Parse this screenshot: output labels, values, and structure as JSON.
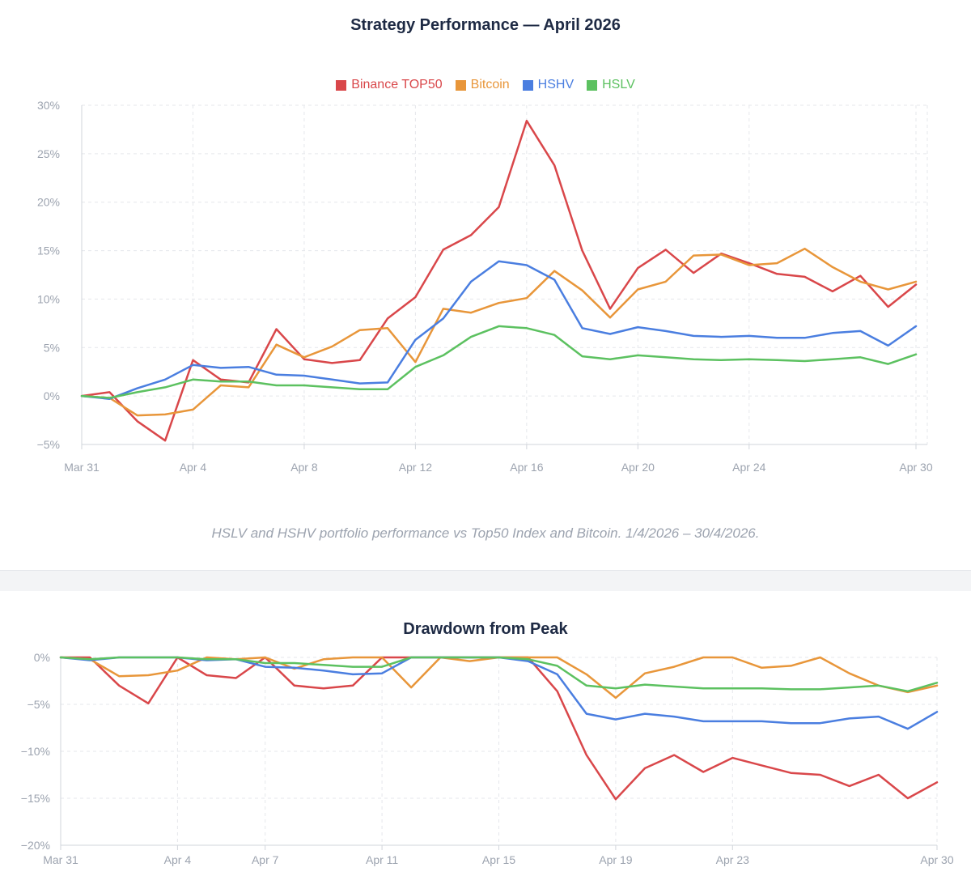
{
  "chart_data": [
    {
      "type": "line",
      "title": "Strategy Performance — April 2026",
      "caption": "HSLV and HSHV portfolio performance vs Top50 Index and Bitcoin. 1/4/2026 – 30/4/2026.",
      "legend_position": "top-center",
      "grid": true,
      "x": [
        "Mar 31",
        "Apr 1",
        "Apr 2",
        "Apr 3",
        "Apr 4",
        "Apr 5",
        "Apr 6",
        "Apr 7",
        "Apr 8",
        "Apr 9",
        "Apr 10",
        "Apr 11",
        "Apr 12",
        "Apr 13",
        "Apr 14",
        "Apr 15",
        "Apr 16",
        "Apr 17",
        "Apr 18",
        "Apr 19",
        "Apr 20",
        "Apr 21",
        "Apr 22",
        "Apr 23",
        "Apr 24",
        "Apr 25",
        "Apr 26",
        "Apr 27",
        "Apr 28",
        "Apr 29",
        "Apr 30"
      ],
      "xticks": [
        "Mar 31",
        "Apr 4",
        "Apr 8",
        "Apr 12",
        "Apr 16",
        "Apr 20",
        "Apr 24",
        "Apr 30"
      ],
      "yticks": [
        "30%",
        "25%",
        "20%",
        "15%",
        "10%",
        "5%",
        "0%",
        "−5%"
      ],
      "ylim": [
        -5,
        30
      ],
      "series": [
        {
          "name": "Binance TOP50",
          "color": "#d9474a",
          "values": [
            0,
            0.4,
            -2.6,
            -4.6,
            3.7,
            1.7,
            1.4,
            6.9,
            3.8,
            3.4,
            3.7,
            8.0,
            10.2,
            15.1,
            16.6,
            19.5,
            28.4,
            23.8,
            15.0,
            9.0,
            13.2,
            15.1,
            12.7,
            14.7,
            13.7,
            12.6,
            12.3,
            10.8,
            12.4,
            9.2,
            11.5
          ]
        },
        {
          "name": "Bitcoin",
          "color": "#e8963a",
          "values": [
            0,
            -0.2,
            -2.0,
            -1.9,
            -1.4,
            1.1,
            0.9,
            5.3,
            4.0,
            5.1,
            6.8,
            7.0,
            3.5,
            9.0,
            8.6,
            9.6,
            10.1,
            12.9,
            10.9,
            8.1,
            11.0,
            11.8,
            14.5,
            14.6,
            13.5,
            13.7,
            15.2,
            13.3,
            11.8,
            11.0,
            11.8
          ]
        },
        {
          "name": "HSHV",
          "color": "#4a7ee0",
          "values": [
            0,
            -0.3,
            0.8,
            1.7,
            3.2,
            2.9,
            3.0,
            2.2,
            2.1,
            1.7,
            1.3,
            1.4,
            5.8,
            8.0,
            11.8,
            13.9,
            13.5,
            12.0,
            7.0,
            6.4,
            7.1,
            6.7,
            6.2,
            6.1,
            6.2,
            6.0,
            6.0,
            6.5,
            6.7,
            5.2,
            7.2
          ]
        },
        {
          "name": "HSLV",
          "color": "#5cc160",
          "values": [
            0,
            -0.2,
            0.4,
            0.9,
            1.7,
            1.5,
            1.5,
            1.1,
            1.1,
            0.9,
            0.7,
            0.7,
            3.0,
            4.2,
            6.1,
            7.2,
            7.0,
            6.3,
            4.1,
            3.8,
            4.2,
            4.0,
            3.8,
            3.7,
            3.8,
            3.7,
            3.6,
            3.8,
            4.0,
            3.3,
            4.3
          ]
        }
      ]
    },
    {
      "type": "line",
      "title": "Drawdown from Peak",
      "grid": true,
      "x": [
        "Mar 31",
        "Apr 1",
        "Apr 2",
        "Apr 3",
        "Apr 4",
        "Apr 5",
        "Apr 6",
        "Apr 7",
        "Apr 8",
        "Apr 9",
        "Apr 10",
        "Apr 11",
        "Apr 12",
        "Apr 13",
        "Apr 14",
        "Apr 15",
        "Apr 16",
        "Apr 17",
        "Apr 18",
        "Apr 19",
        "Apr 20",
        "Apr 21",
        "Apr 22",
        "Apr 23",
        "Apr 24",
        "Apr 25",
        "Apr 26",
        "Apr 27",
        "Apr 28",
        "Apr 29",
        "Apr 30"
      ],
      "xticks": [
        "Mar 31",
        "Apr 4",
        "Apr 7",
        "Apr 11",
        "Apr 15",
        "Apr 19",
        "Apr 23",
        "Apr 30"
      ],
      "yticks": [
        "0%",
        "−5%",
        "−10%",
        "−15%",
        "−20%"
      ],
      "ylim": [
        -20,
        0
      ],
      "series": [
        {
          "name": "Binance TOP50",
          "color": "#d9474a",
          "values": [
            0,
            0,
            -3.0,
            -4.9,
            0,
            -1.9,
            -2.2,
            0,
            -3.0,
            -3.3,
            -3.0,
            0,
            0,
            0,
            0,
            0,
            0,
            -3.6,
            -10.4,
            -15.1,
            -11.8,
            -10.4,
            -12.2,
            -10.7,
            -11.5,
            -12.3,
            -12.5,
            -13.7,
            -12.5,
            -15.0,
            -13.3
          ]
        },
        {
          "name": "Bitcoin",
          "color": "#e8963a",
          "values": [
            0,
            -0.2,
            -2.0,
            -1.9,
            -1.4,
            0,
            -0.2,
            0,
            -1.2,
            -0.2,
            0,
            0,
            -3.2,
            0,
            -0.4,
            0,
            0,
            0,
            -1.8,
            -4.3,
            -1.7,
            -1.0,
            0,
            0,
            -1.1,
            -0.9,
            0,
            -1.7,
            -3.0,
            -3.7,
            -3.0
          ]
        },
        {
          "name": "HSHV",
          "color": "#4a7ee0",
          "values": [
            0,
            -0.3,
            0,
            0,
            0,
            -0.3,
            -0.2,
            -1.0,
            -1.1,
            -1.4,
            -1.8,
            -1.7,
            0,
            0,
            0,
            0,
            -0.4,
            -1.8,
            -6.0,
            -6.6,
            -6.0,
            -6.3,
            -6.8,
            -6.8,
            -6.8,
            -7.0,
            -7.0,
            -6.5,
            -6.3,
            -7.6,
            -5.8
          ]
        },
        {
          "name": "HSLV",
          "color": "#5cc160",
          "values": [
            0,
            -0.2,
            0,
            0,
            0,
            -0.2,
            -0.2,
            -0.6,
            -0.6,
            -0.8,
            -1.0,
            -1.0,
            0,
            0,
            0,
            0,
            -0.2,
            -0.9,
            -3.0,
            -3.3,
            -2.9,
            -3.1,
            -3.3,
            -3.3,
            -3.3,
            -3.4,
            -3.4,
            -3.2,
            -3.0,
            -3.6,
            -2.7
          ]
        }
      ]
    }
  ]
}
